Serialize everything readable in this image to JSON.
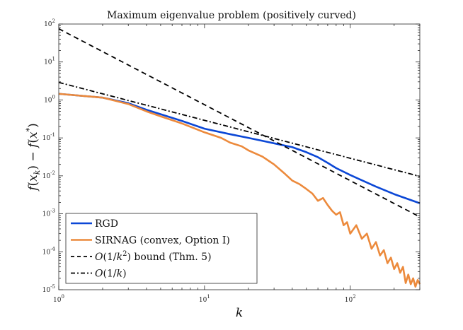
{
  "chart_data": {
    "type": "line",
    "title": "Maximum eigenvalue problem (positively curved)",
    "xlabel": "k",
    "ylabel": "f(x_k) − f(x*)",
    "xscale": "log",
    "yscale": "log",
    "xlim": [
      1,
      300
    ],
    "ylim": [
      1e-05,
      100
    ],
    "grid": false,
    "legend_position": "bottom-left",
    "x_ticks": [
      {
        "value": 1,
        "base": "10",
        "exp": "0"
      },
      {
        "value": 10,
        "base": "10",
        "exp": "1"
      },
      {
        "value": 100,
        "base": "10",
        "exp": "2"
      }
    ],
    "y_ticks": [
      {
        "value": 1e-05,
        "base": "10",
        "exp": "-5"
      },
      {
        "value": 0.0001,
        "base": "10",
        "exp": "-4"
      },
      {
        "value": 0.001,
        "base": "10",
        "exp": "-3"
      },
      {
        "value": 0.01,
        "base": "10",
        "exp": "-2"
      },
      {
        "value": 0.1,
        "base": "10",
        "exp": "-1"
      },
      {
        "value": 1,
        "base": "10",
        "exp": "0"
      },
      {
        "value": 10,
        "base": "10",
        "exp": "1"
      },
      {
        "value": 100,
        "base": "10",
        "exp": "2"
      }
    ],
    "series": [
      {
        "name": "RGD",
        "legend_label": "RGD",
        "color": "#0b47d6",
        "style": "solid",
        "width": 2.6,
        "x": [
          1,
          2,
          3,
          4,
          5,
          7,
          10,
          15,
          20,
          30,
          40,
          50,
          60,
          70,
          80,
          100,
          150,
          200,
          300
        ],
        "y": [
          1.45,
          1.15,
          0.82,
          0.55,
          0.42,
          0.28,
          0.175,
          0.125,
          0.1,
          0.072,
          0.057,
          0.042,
          0.031,
          0.022,
          0.016,
          0.0105,
          0.0052,
          0.0033,
          0.0019
        ]
      },
      {
        "name": "SIRNAG (convex, Option I)",
        "legend_label": "SIRNAG (convex, Option I)",
        "color": "#ec8a3c",
        "style": "solid",
        "width": 2.6,
        "x": [
          1,
          2,
          3,
          4,
          5,
          7,
          10,
          13,
          15,
          18,
          20,
          25,
          30,
          35,
          40,
          45,
          50,
          55,
          60,
          65,
          70,
          75,
          80,
          85,
          90,
          95,
          100,
          110,
          120,
          130,
          140,
          150,
          160,
          170,
          180,
          190,
          200,
          210,
          220,
          230,
          240,
          250,
          260,
          270,
          280,
          290,
          300
        ],
        "y": [
          1.45,
          1.15,
          0.78,
          0.5,
          0.37,
          0.24,
          0.14,
          0.1,
          0.075,
          0.06,
          0.047,
          0.032,
          0.02,
          0.012,
          0.0075,
          0.006,
          0.0045,
          0.0034,
          0.0022,
          0.0026,
          0.0017,
          0.0012,
          0.00095,
          0.0011,
          0.0005,
          0.0006,
          0.0003,
          0.0005,
          0.00022,
          0.0003,
          0.00012,
          0.00018,
          8e-05,
          0.00011,
          5e-05,
          7e-05,
          3.5e-05,
          5e-05,
          2.8e-05,
          4e-05,
          1.5e-05,
          2.5e-05,
          1.4e-05,
          2e-05,
          1.2e-05,
          1.8e-05,
          1.4e-05
        ]
      },
      {
        "name": "O(1/k^2) bound (Thm. 5)",
        "legend_label": "bound (Thm. 5)",
        "legend_math": {
          "prefix": "O",
          "open": "(1/",
          "var": "k",
          "sup": "2",
          "close": ")"
        },
        "color": "#000000",
        "style": "dashed",
        "width": 1.8,
        "x": [
          1,
          300
        ],
        "y": [
          75,
          0.00083
        ]
      },
      {
        "name": "O(1/k)",
        "legend_label": "",
        "legend_math": {
          "prefix": "O",
          "open": "(1/",
          "var": "k",
          "sup": "",
          "close": ")"
        },
        "color": "#000000",
        "style": "dashdot",
        "width": 1.8,
        "x": [
          1,
          300
        ],
        "y": [
          2.9,
          0.0097
        ]
      }
    ]
  }
}
